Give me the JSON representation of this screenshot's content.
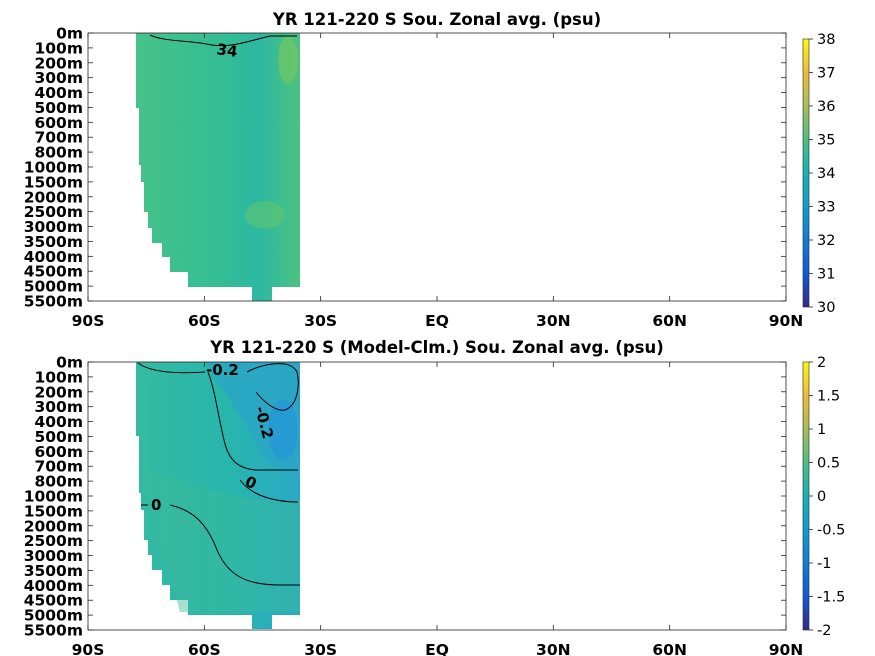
{
  "chart_data": [
    {
      "type": "heatmap",
      "title": "YR 121-220 S Sou. Zonal avg. (psu)",
      "x_ticks": [
        "90S",
        "60S",
        "30S",
        "EQ",
        "30N",
        "60N",
        "90N"
      ],
      "y_ticks": [
        "0m",
        "100m",
        "200m",
        "300m",
        "400m",
        "500m",
        "600m",
        "700m",
        "800m",
        "1000m",
        "1500m",
        "2000m",
        "2500m",
        "3000m",
        "3500m",
        "4000m",
        "4500m",
        "5000m",
        "5500m"
      ],
      "colorbar": {
        "ticks": [
          "30",
          "31",
          "32",
          "33",
          "34",
          "35",
          "36",
          "37",
          "38"
        ],
        "min": 30,
        "max": 38
      },
      "xlim": [
        -90,
        90
      ],
      "data_extent_lat": [
        -80,
        -36
      ],
      "value_range": [
        33.9,
        35.2
      ],
      "contours": [
        {
          "level": 34,
          "label": "34"
        }
      ]
    },
    {
      "type": "heatmap",
      "title": "YR 121-220 S (Model-Clm.) Sou. Zonal avg. (psu)",
      "x_ticks": [
        "90S",
        "60S",
        "30S",
        "EQ",
        "30N",
        "60N",
        "90N"
      ],
      "y_ticks": [
        "0m",
        "100m",
        "200m",
        "300m",
        "400m",
        "500m",
        "600m",
        "700m",
        "800m",
        "1000m",
        "1500m",
        "2000m",
        "2500m",
        "3000m",
        "3500m",
        "4000m",
        "4500m",
        "5000m",
        "5500m"
      ],
      "colorbar": {
        "ticks": [
          "2",
          "1.5",
          "1",
          "0.5",
          "0",
          "-0.5",
          "-1",
          "-1.5",
          "-2"
        ],
        "min": -2,
        "max": 2
      },
      "xlim": [
        -90,
        90
      ],
      "data_extent_lat": [
        -80,
        -36
      ],
      "value_range": [
        -0.5,
        0.2
      ],
      "contours": [
        {
          "level": -0.2,
          "label": "-0.2"
        },
        {
          "level": -0.2,
          "label": "-0.2"
        },
        {
          "level": 0,
          "label": "0"
        },
        {
          "level": 0,
          "label": "0"
        }
      ]
    }
  ],
  "colors": {
    "cmap_low": "#3e26a8",
    "cmap_mid": "#1ab1c8",
    "cmap_high": "#f9fb15",
    "top_field": "#3cc28a",
    "top_field_dark": "#2cb6a0",
    "bottom_field": "#27b8aa",
    "bottom_field_blue": "#2596d8"
  }
}
